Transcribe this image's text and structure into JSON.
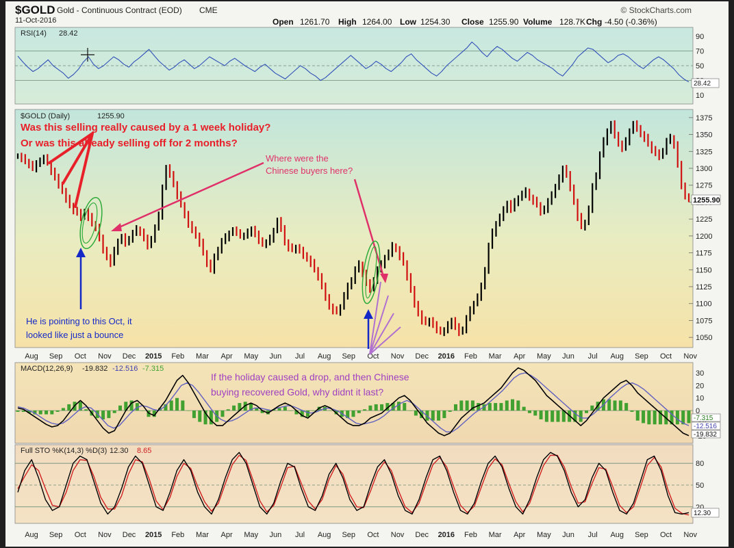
{
  "header": {
    "symbol": "$GOLD",
    "description": "Gold - Continuous Contract (EOD)",
    "exchange": "CME",
    "date": "11-Oct-2016",
    "open_label": "Open",
    "open_value": "1261.70",
    "high_label": "High",
    "high_value": "1264.00",
    "low_label": "Low",
    "low_value": "1254.30",
    "close_label": "Close",
    "close_value": "1255.90",
    "volume_label": "Volume",
    "volume_value": "128.7K",
    "chg_label": "Chg",
    "chg_value": "-4.50 (-0.36%)",
    "watermark": "© StockCharts.com"
  },
  "colors": {
    "annotation_red": "#e8202a",
    "annotation_pink": "#e0306a",
    "annotation_blue": "#1428c8",
    "annotation_purple": "#a040c0",
    "ellipse_green": "#2eaa3a",
    "price_up": "#000000",
    "price_down": "#d01010",
    "rsi_line": "#3050b8",
    "macd_line": "#000000",
    "signal_line": "#6060c0",
    "histogram": "#40a030",
    "sto_k": "#000000",
    "sto_d": "#d02020"
  },
  "annotations": {
    "holiday_question_1": "Was this selling really caused by a 1 week holiday?",
    "holiday_question_2": "Or was this already selling off for 2 months?",
    "chinese_buyers_1": "Where were the",
    "chinese_buyers_2": "Chinese buyers here?",
    "pointing_1": "He is pointing to this Oct, it",
    "pointing_2": "looked like just a bounce",
    "why_1": "If the holiday caused a drop, and then Chinese",
    "why_2": "buying recovered Gold, why didnt it last?"
  },
  "chart_data": [
    {
      "type": "line",
      "panel": "RSI",
      "label": "RSI(14)",
      "current_value": "28.42",
      "y_ticks": [
        10,
        30,
        50,
        70,
        90
      ],
      "ylim": [
        0,
        100
      ],
      "reference_lines": [
        30,
        50,
        70
      ],
      "series": [
        {
          "values": [
            63,
            55,
            48,
            42,
            46,
            52,
            58,
            50,
            45,
            40,
            33,
            38,
            45,
            55,
            62,
            52,
            46,
            50,
            56,
            62,
            58,
            52,
            48,
            55,
            60,
            66,
            72,
            64,
            56,
            50,
            44,
            48,
            54,
            58,
            52,
            46,
            50,
            56,
            62,
            58,
            54,
            50,
            56,
            60,
            55,
            50,
            46,
            42,
            48,
            52,
            46,
            40,
            36,
            32,
            38,
            44,
            50,
            46,
            40,
            36,
            30,
            34,
            40,
            46,
            52,
            58,
            64,
            58,
            52,
            46,
            50,
            56,
            52,
            46,
            42,
            48,
            54,
            62,
            66,
            58,
            52,
            46,
            40,
            36,
            42,
            50,
            56,
            62,
            68,
            74,
            82,
            76,
            68,
            62,
            70,
            76,
            72,
            66,
            60,
            56,
            62,
            68,
            64,
            58,
            54,
            50,
            46,
            40,
            36,
            44,
            52,
            62,
            68,
            74,
            72,
            66,
            60,
            54,
            58,
            64,
            66,
            62,
            56,
            50,
            46,
            52,
            58,
            62,
            58,
            52,
            46,
            38,
            32,
            28
          ]
        }
      ]
    },
    {
      "type": "line",
      "panel": "price",
      "label": "$GOLD (Daily)",
      "current_value": "1255.90",
      "y_ticks": [
        1050,
        1075,
        1100,
        1125,
        1150,
        1175,
        1200,
        1225,
        1250,
        1275,
        1300,
        1325,
        1350,
        1375
      ],
      "ylim": [
        1037,
        1385
      ],
      "x_ticks": [
        "Aug",
        "Sep",
        "Oct",
        "Nov",
        "Dec",
        "2015",
        "Feb",
        "Mar",
        "Apr",
        "May",
        "Jun",
        "Jul",
        "Aug",
        "Sep",
        "Oct",
        "Nov",
        "Dec",
        "2016",
        "Feb",
        "Mar",
        "Apr",
        "May",
        "Jun",
        "Jul",
        "Aug",
        "Sep",
        "Oct",
        "Nov"
      ],
      "series": [
        {
          "values": [
            1318,
            1315,
            1310,
            1306,
            1300,
            1306,
            1312,
            1315,
            1308,
            1296,
            1286,
            1276,
            1266,
            1255,
            1245,
            1238,
            1234,
            1228,
            1236,
            1228,
            1218,
            1213,
            1196,
            1180,
            1168,
            1160,
            1178,
            1192,
            1198,
            1190,
            1196,
            1204,
            1210,
            1206,
            1196,
            1186,
            1196,
            1212,
            1230,
            1272,
            1300,
            1292,
            1276,
            1260,
            1246,
            1232,
            1216,
            1210,
            1200,
            1190,
            1175,
            1160,
            1150,
            1168,
            1180,
            1192,
            1198,
            1204,
            1208,
            1206,
            1200,
            1200,
            1205,
            1210,
            1202,
            1194,
            1188,
            1190,
            1196,
            1208,
            1222,
            1212,
            1190,
            1183,
            1180,
            1183,
            1178,
            1172,
            1166,
            1160,
            1150,
            1140,
            1125,
            1110,
            1095,
            1090,
            1088,
            1095,
            1112,
            1125,
            1135,
            1150,
            1158,
            1145,
            1130,
            1122,
            1135,
            1150,
            1158,
            1168,
            1175,
            1185,
            1180,
            1170,
            1160,
            1140,
            1120,
            1100,
            1085,
            1075,
            1072,
            1075,
            1068,
            1062,
            1058,
            1060,
            1068,
            1075,
            1065,
            1058,
            1062,
            1078,
            1090,
            1100,
            1110,
            1125,
            1150,
            1185,
            1205,
            1218,
            1228,
            1238,
            1248,
            1240,
            1250,
            1256,
            1262,
            1266,
            1256,
            1252,
            1246,
            1236,
            1240,
            1250,
            1262,
            1272,
            1285,
            1300,
            1290,
            1272,
            1250,
            1228,
            1214,
            1220,
            1240,
            1272,
            1290,
            1320,
            1340,
            1355,
            1365,
            1350,
            1336,
            1330,
            1340,
            1355,
            1365,
            1360,
            1350,
            1345,
            1336,
            1328,
            1322,
            1318,
            1326,
            1340,
            1345,
            1335,
            1305,
            1275,
            1258,
            1256
          ]
        }
      ]
    },
    {
      "type": "line",
      "panel": "MACD",
      "label": "MACD(12,26,9)",
      "macd_value": "-19.832",
      "signal_value": "-12.516",
      "histogram_value": "-7.315",
      "y_ticks": [
        -20,
        -10,
        0,
        10,
        20,
        30
      ],
      "ylim": [
        -25,
        36
      ],
      "reference_lines": [
        0
      ],
      "series": [
        {
          "name": "MACD",
          "values": [
            2,
            1,
            -2,
            -5,
            -8,
            -11,
            -13,
            -12,
            -8,
            -2,
            4,
            8,
            4,
            -2,
            -8,
            -14,
            -18,
            -16,
            -8,
            0,
            6,
            8,
            4,
            -2,
            -4,
            2,
            8,
            16,
            24,
            28,
            22,
            14,
            6,
            -2,
            -8,
            -12,
            -12,
            -8,
            -4,
            0,
            4,
            6,
            4,
            0,
            -2,
            1,
            4,
            6,
            4,
            0,
            -4,
            -6,
            -2,
            2,
            4,
            2,
            -2,
            -6,
            -10,
            -12,
            -12,
            -10,
            -6,
            -4,
            -2,
            2,
            6,
            10,
            12,
            8,
            2,
            -4,
            -10,
            -14,
            -18,
            -20,
            -18,
            -12,
            -6,
            -2,
            2,
            4,
            6,
            10,
            14,
            18,
            24,
            30,
            34,
            32,
            28,
            24,
            18,
            12,
            8,
            4,
            0,
            -4,
            -8,
            -12,
            -8,
            -2,
            4,
            10,
            14,
            18,
            22,
            24,
            20,
            14,
            10,
            6,
            2,
            -2,
            -6,
            -10,
            -14,
            -18,
            -20
          ]
        },
        {
          "name": "Signal",
          "values": [
            3,
            2,
            0,
            -2,
            -5,
            -8,
            -10,
            -11,
            -10,
            -7,
            -3,
            1,
            3,
            2,
            -2,
            -7,
            -12,
            -14,
            -12,
            -7,
            -2,
            2,
            4,
            3,
            1,
            0,
            3,
            8,
            14,
            20,
            22,
            20,
            15,
            9,
            3,
            -3,
            -7,
            -9,
            -8,
            -6,
            -3,
            0,
            2,
            2,
            1,
            0,
            2,
            3,
            4,
            3,
            1,
            -1,
            -2,
            -1,
            1,
            2,
            1,
            -1,
            -4,
            -7,
            -10,
            -11,
            -10,
            -9,
            -7,
            -4,
            0,
            3,
            6,
            8,
            6,
            2,
            -2,
            -6,
            -10,
            -14,
            -17,
            -17,
            -14,
            -10,
            -6,
            -2,
            1,
            4,
            8,
            12,
            16,
            21,
            26,
            29,
            30,
            28,
            25,
            21,
            17,
            13,
            9,
            5,
            1,
            -3,
            -6,
            -6,
            -3,
            1,
            5,
            10,
            14,
            18,
            21,
            22,
            20,
            17,
            13,
            9,
            5,
            1,
            -3,
            -7,
            -10,
            -12
          ]
        }
      ]
    },
    {
      "type": "line",
      "panel": "Full STO",
      "label": "Full STO %K(14,3) %D(3)",
      "k_value": "12.30",
      "d_value": "8.65",
      "y_ticks": [
        20,
        50,
        80
      ],
      "ylim": [
        0,
        100
      ],
      "reference_lines": [
        20,
        50,
        80
      ],
      "series": [
        {
          "name": "%K",
          "values": [
            40,
            70,
            85,
            60,
            30,
            15,
            20,
            50,
            80,
            90,
            85,
            55,
            25,
            10,
            20,
            45,
            75,
            90,
            80,
            50,
            20,
            15,
            40,
            70,
            85,
            70,
            40,
            20,
            10,
            30,
            60,
            85,
            95,
            80,
            50,
            20,
            10,
            25,
            55,
            80,
            75,
            45,
            20,
            15,
            35,
            65,
            80,
            60,
            30,
            15,
            20,
            50,
            75,
            85,
            65,
            35,
            15,
            10,
            30,
            60,
            85,
            90,
            70,
            40,
            15,
            10,
            25,
            55,
            80,
            90,
            75,
            45,
            20,
            10,
            30,
            60,
            85,
            95,
            90,
            70,
            40,
            20,
            30,
            60,
            80,
            70,
            40,
            15,
            10,
            25,
            55,
            85,
            90,
            70,
            35,
            12,
            10,
            12
          ]
        },
        {
          "name": "%D",
          "values": [
            45,
            62,
            78,
            70,
            45,
            22,
            20,
            40,
            70,
            85,
            84,
            62,
            33,
            17,
            17,
            35,
            65,
            85,
            82,
            58,
            28,
            16,
            33,
            62,
            80,
            73,
            48,
            27,
            14,
            25,
            52,
            78,
            91,
            84,
            57,
            28,
            13,
            22,
            47,
            74,
            76,
            52,
            28,
            17,
            30,
            58,
            77,
            65,
            37,
            20,
            19,
            42,
            68,
            82,
            70,
            43,
            20,
            12,
            25,
            52,
            78,
            88,
            75,
            48,
            22,
            12,
            21,
            47,
            73,
            86,
            78,
            52,
            27,
            13,
            25,
            52,
            77,
            91,
            91,
            75,
            48,
            25,
            27,
            52,
            74,
            72,
            48,
            22,
            12,
            20,
            47,
            77,
            88,
            75,
            43,
            18,
            11,
            8.65
          ]
        }
      ]
    }
  ]
}
